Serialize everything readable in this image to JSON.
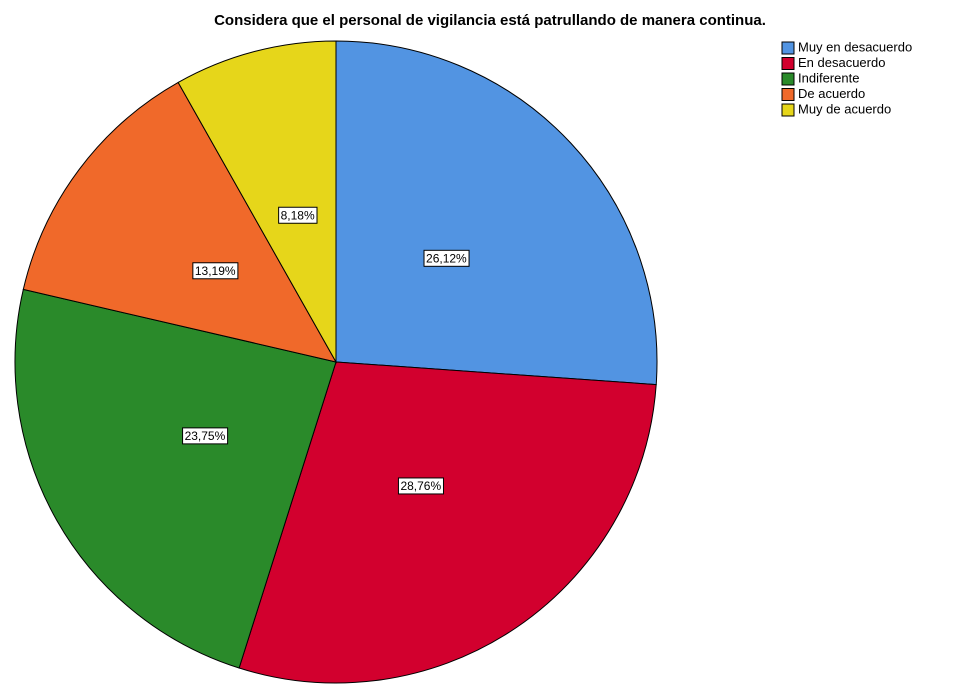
{
  "chart_data": {
    "type": "pie",
    "title": "Considera que el personal de vigilancia está patrullando de manera continua.",
    "categories": [
      "Muy en desacuerdo",
      "En desacuerdo",
      "Indiferente",
      "De acuerdo",
      "Muy de acuerdo"
    ],
    "values": [
      26.12,
      28.76,
      23.75,
      13.19,
      8.18
    ],
    "value_labels": [
      "26,12%",
      "28,76%",
      "23,75%",
      "13,19%",
      "8,18%"
    ],
    "colors": [
      "#5294e2",
      "#d2002e",
      "#2a8a2a",
      "#f0692a",
      "#e6d61a"
    ],
    "legend": "top-right"
  }
}
